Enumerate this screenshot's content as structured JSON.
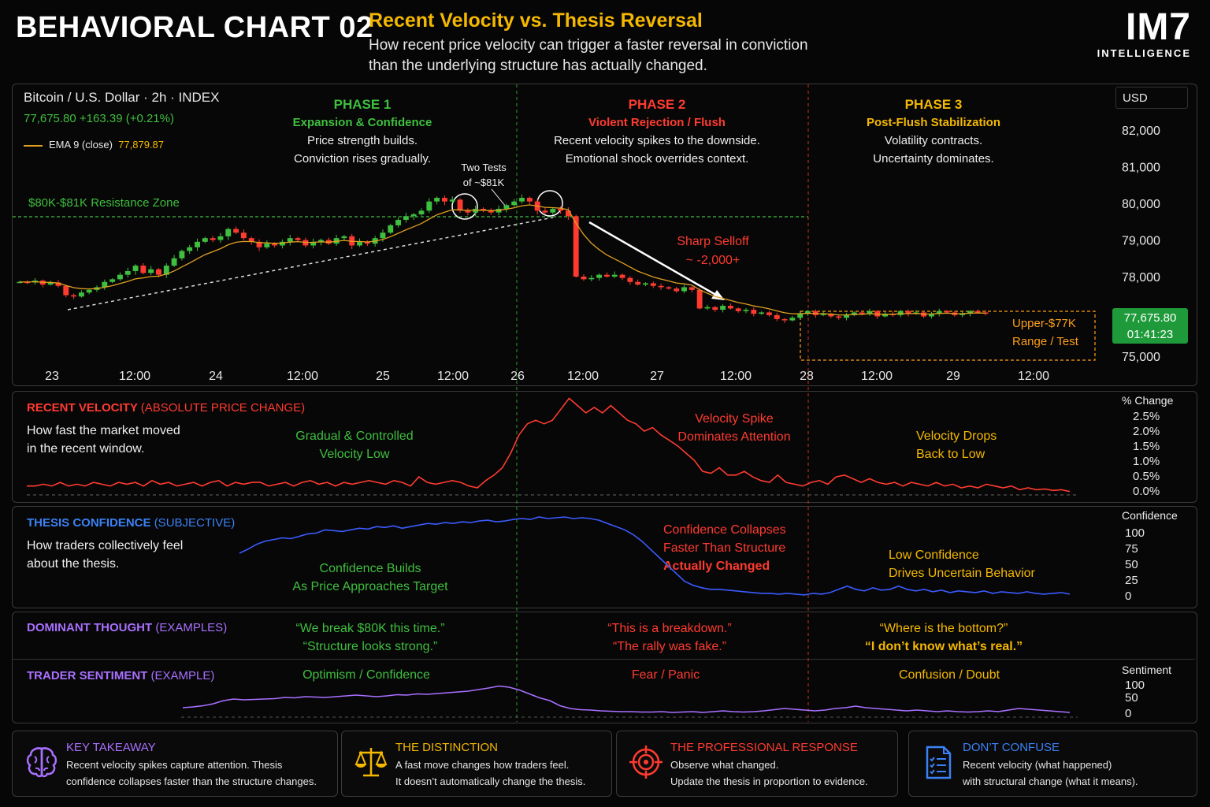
{
  "header": {
    "title": "BEHAVIORAL CHART 02",
    "subtitle": "Recent Velocity vs. Thesis Reversal",
    "desc_line1": "How recent price velocity can trigger a faster reversal in conviction",
    "desc_line2": "than the underlying structure has actually changed.",
    "logo_main": "IM7",
    "logo_sub": "INTELLIGENCE"
  },
  "price_panel": {
    "instrument": "Bitcoin / U.S. Dollar · 2h · INDEX",
    "last_line": "77,675.80  +163.39 (+0.21%)",
    "ema_label": "EMA 9 (close)",
    "ema_value": "77,879.87",
    "currency": "USD",
    "price_badge": "77,675.80",
    "timer_badge": "01:41:23",
    "resistance_label": "$80K-$81K Resistance Zone",
    "two_tests_line1": "Two Tests",
    "two_tests_line2": "of ~$81K",
    "selloff_line1": "Sharp Selloff",
    "selloff_line2": "~ -2,000+",
    "range_line1": "Upper-$77K",
    "range_line2": "Range / Test",
    "phases": [
      {
        "title": "PHASE 1",
        "subtitle": "Expansion & Confidence",
        "line1": "Price strength builds.",
        "line2": "Conviction rises gradually.",
        "color": "#3fbf3f"
      },
      {
        "title": "PHASE 2",
        "subtitle": "Violent Rejection / Flush",
        "line1": "Recent velocity spikes to the downside.",
        "line2": "Emotional shock overrides context.",
        "color": "#ff3b30"
      },
      {
        "title": "PHASE 3",
        "subtitle": "Post-Flush Stabilization",
        "line1": "Volatility contracts.",
        "line2": "Uncertainty dominates.",
        "color": "#f5b800"
      }
    ]
  },
  "velocity_panel": {
    "title": "RECENT VELOCITY",
    "title_suffix": "(ABSOLUTE PRICE CHANGE)",
    "desc_line1": "How fast the market moved",
    "desc_line2": "in the recent window.",
    "axis_title": "% Change",
    "note1_line1": "Gradual & Controlled",
    "note1_line2": "Velocity Low",
    "note2_line1": "Velocity Spike",
    "note2_line2": "Dominates Attention",
    "note3_line1": "Velocity Drops",
    "note3_line2": "Back to Low"
  },
  "confidence_panel": {
    "title": "THESIS CONFIDENCE",
    "title_suffix": "(SUBJECTIVE)",
    "desc_line1": "How traders collectively feel",
    "desc_line2": "about the thesis.",
    "axis_title": "Confidence",
    "note1_line1": "Confidence Builds",
    "note1_line2": "As Price Approaches Target",
    "note2_line1": "Confidence Collapses",
    "note2_line2": "Faster Than Structure",
    "note2_line3": "Actually Changed",
    "note3_line1": "Low Confidence",
    "note3_line2": "Drives Uncertain Behavior"
  },
  "thought_panel": {
    "title": "DOMINANT THOUGHT",
    "title_suffix": "(EXAMPLES)",
    "p1_line1": "“We break $80K this time.”",
    "p1_line2": "“Structure looks strong.”",
    "p2_line1": "“This is a breakdown.”",
    "p2_line2": "“The rally was fake.”",
    "p3_line1": "“Where is the bottom?”",
    "p3_line2": "“I don’t know what’s real.”"
  },
  "sentiment_panel": {
    "title": "TRADER SENTIMENT",
    "title_suffix": "(EXAMPLE)",
    "axis_title": "Sentiment",
    "p1": "Optimism  /  Confidence",
    "p2": "Fear / Panic",
    "p3": "Confusion / Doubt"
  },
  "cards": [
    {
      "title": "KEY TAKEAWAY",
      "line1": "Recent velocity spikes capture attention. Thesis",
      "line2": "confidence collapses faster than the structure changes.",
      "color": "#a970ff",
      "icon": "brain-icon"
    },
    {
      "title": "THE DISTINCTION",
      "line1": "A fast move changes how traders feel.",
      "line2": "It doesn’t automatically change the thesis.",
      "color": "#f5b800",
      "icon": "scale-icon"
    },
    {
      "title": "THE PROFESSIONAL RESPONSE",
      "line1": "Observe what changed.",
      "line2": "Update the thesis in proportion to evidence.",
      "color": "#ff3b30",
      "icon": "target-icon"
    },
    {
      "title": "DON’T CONFUSE",
      "line1": "Recent velocity (what happened)",
      "line2": "with structural change (what it means).",
      "color": "#3b82f6",
      "icon": "checklist-icon"
    }
  ],
  "colors": {
    "green": "#3fbf3f",
    "red": "#ff3b30",
    "yellow": "#f5b800",
    "blue": "#3b5bff",
    "purple": "#a970ff",
    "ema": "#e0a020"
  },
  "chart_data": [
    {
      "type": "candlestick",
      "title": "Bitcoin / U.S. Dollar · 2h · INDEX",
      "x_ticks": [
        "23",
        "12:00",
        "24",
        "12:00",
        "25",
        "12:00",
        "26",
        "12:00",
        "27",
        "12:00",
        "28",
        "12:00",
        "29",
        "12:00"
      ],
      "y_ticks": [
        "82,000",
        "81,000",
        "80,000",
        "79,000",
        "78,000",
        "75,000"
      ],
      "ylim": [
        75000,
        82000
      ],
      "close_path": [
        77800,
        77780,
        77850,
        77700,
        77780,
        77650,
        77300,
        77250,
        77400,
        77500,
        77600,
        77800,
        77900,
        78050,
        78150,
        78300,
        78100,
        78200,
        78050,
        78300,
        78500,
        78700,
        78800,
        78950,
        79050,
        79000,
        79100,
        79300,
        79200,
        79050,
        78950,
        78800,
        78900,
        78850,
        78950,
        79050,
        79000,
        78850,
        78950,
        79000,
        78900,
        79050,
        79100,
        78850,
        78950,
        78900,
        79050,
        79200,
        79400,
        79550,
        79650,
        79700,
        79800,
        80050,
        80150,
        80050,
        80100,
        79800,
        79750,
        79850,
        79800,
        79750,
        79850,
        79950,
        80050,
        80150,
        80050,
        79800,
        79750,
        79850,
        79800,
        79650,
        78000,
        77900,
        77950,
        78050,
        78000,
        78050,
        77950,
        77800,
        77700,
        77750,
        77650,
        77600,
        77550,
        77450,
        77600,
        77500,
        76800,
        76850,
        76750,
        76900,
        76800,
        76700,
        76750,
        76600,
        76650,
        76550,
        76400,
        76350,
        76450,
        76600,
        76700,
        76550,
        76600,
        76500,
        76450,
        76550,
        76650,
        76600,
        76700,
        76500,
        76600,
        76550,
        76700,
        76600,
        76650,
        76500,
        76600,
        76700,
        76650,
        76550,
        76600,
        76700,
        76650,
        76600
      ],
      "ema_label": "EMA 9 (close)"
    },
    {
      "type": "line",
      "title": "RECENT VELOCITY (ABSOLUTE PRICE CHANGE)",
      "ylabel": "% Change",
      "y_ticks": [
        "2.5%",
        "2.0%",
        "1.5%",
        "1.0%",
        "0.5%",
        "0.0%"
      ],
      "ylim": [
        0,
        2.5
      ],
      "values": [
        0.2,
        0.2,
        0.25,
        0.2,
        0.3,
        0.2,
        0.25,
        0.2,
        0.3,
        0.25,
        0.2,
        0.3,
        0.25,
        0.3,
        0.2,
        0.35,
        0.25,
        0.3,
        0.2,
        0.25,
        0.3,
        0.2,
        0.3,
        0.35,
        0.2,
        0.3,
        0.25,
        0.3,
        0.3,
        0.2,
        0.25,
        0.3,
        0.2,
        0.3,
        0.35,
        0.25,
        0.3,
        0.2,
        0.3,
        0.25,
        0.3,
        0.35,
        0.3,
        0.25,
        0.35,
        0.3,
        0.2,
        0.45,
        0.3,
        0.25,
        0.3,
        0.35,
        0.3,
        0.2,
        0.15,
        0.35,
        0.5,
        0.7,
        1.1,
        1.6,
        1.9,
        2.0,
        1.9,
        2.0,
        2.3,
        2.6,
        2.4,
        2.2,
        2.35,
        2.2,
        2.4,
        2.2,
        2.0,
        1.9,
        1.7,
        1.8,
        1.6,
        1.45,
        1.3,
        1.1,
        0.9,
        0.6,
        0.55,
        0.7,
        0.5,
        0.5,
        0.6,
        0.45,
        0.35,
        0.3,
        0.5,
        0.3,
        0.25,
        0.2,
        0.3,
        0.35,
        0.25,
        0.45,
        0.5,
        0.4,
        0.3,
        0.4,
        0.3,
        0.25,
        0.3,
        0.2,
        0.3,
        0.25,
        0.2,
        0.3,
        0.2,
        0.25,
        0.15,
        0.2,
        0.15,
        0.25,
        0.2,
        0.15,
        0.2,
        0.1,
        0.15,
        0.1,
        0.12,
        0.08,
        0.1,
        0.05
      ]
    },
    {
      "type": "line",
      "title": "THESIS CONFIDENCE (SUBJECTIVE)",
      "ylabel": "Confidence",
      "y_ticks": [
        "100",
        "75",
        "50",
        "25",
        "0"
      ],
      "ylim": [
        0,
        100
      ],
      "values": [
        55,
        60,
        66,
        70,
        72,
        74,
        73,
        76,
        79,
        80,
        84,
        83,
        82,
        84,
        86,
        85,
        88,
        87,
        89,
        86,
        88,
        90,
        92,
        91,
        93,
        92,
        94,
        93,
        95,
        96,
        94,
        95,
        97,
        98,
        97,
        100,
        98,
        99,
        100,
        98,
        99,
        98,
        96,
        92,
        88,
        84,
        78,
        70,
        60,
        50,
        40,
        30,
        20,
        15,
        12,
        10,
        10,
        9,
        8,
        7,
        6,
        5,
        5,
        4,
        5,
        4,
        3,
        5,
        4,
        6,
        10,
        14,
        10,
        8,
        12,
        9,
        10,
        14,
        10,
        8,
        10,
        7,
        9,
        6,
        8,
        7,
        6,
        8,
        5,
        7,
        6,
        5,
        7,
        5,
        4,
        5,
        6,
        4
      ]
    },
    {
      "type": "line",
      "title": "TRADER SENTIMENT (EXAMPLE)",
      "ylabel": "Sentiment",
      "y_ticks": [
        "100",
        "50",
        "0"
      ],
      "ylim": [
        0,
        100
      ],
      "values": [
        20,
        22,
        25,
        30,
        38,
        42,
        40,
        41,
        42,
        43,
        46,
        45,
        48,
        47,
        46,
        48,
        50,
        52,
        50,
        48,
        50,
        53,
        52,
        55,
        54,
        56,
        58,
        60,
        62,
        66,
        70,
        75,
        72,
        65,
        55,
        45,
        38,
        25,
        18,
        15,
        14,
        12,
        11,
        10,
        10,
        9,
        9,
        10,
        8,
        9,
        10,
        8,
        10,
        12,
        10,
        9,
        10,
        12,
        15,
        18,
        16,
        14,
        12,
        14,
        18,
        20,
        24,
        20,
        18,
        16,
        14,
        12,
        14,
        12,
        10,
        12,
        10,
        9,
        10,
        12,
        10,
        14,
        18,
        16,
        14,
        12,
        10,
        8
      ]
    }
  ]
}
